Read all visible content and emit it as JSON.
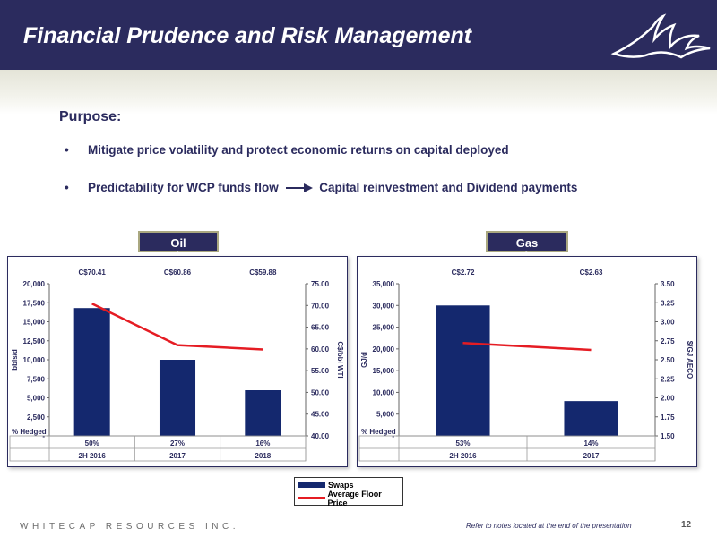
{
  "header": {
    "title": "Financial Prudence and Risk Management"
  },
  "purpose": {
    "heading": "Purpose:",
    "bullets": [
      {
        "text": "Mitigate price volatility and protect economic returns on capital deployed"
      },
      {
        "text_left": "Predictability for WCP funds flow",
        "text_right": "Capital reinvestment and Dividend payments"
      }
    ]
  },
  "legend": {
    "swaps": "Swaps",
    "floor": "Average Floor Price"
  },
  "footer": {
    "company": "WHITECAP RESOURCES INC.",
    "note": "Refer to notes located at the end of the presentation",
    "page": "12"
  },
  "colors": {
    "bar": "#14286e",
    "line": "#e51c23",
    "header": "#2b2b5e"
  },
  "chart_data": [
    {
      "type": "bar",
      "title": "Oil Hedges",
      "categories": [
        "2H 2016",
        "2017",
        "2018"
      ],
      "ylabel": "bbls/d",
      "y2label": "C$/bbl WTI",
      "ylim": [
        0,
        20000
      ],
      "y2lim": [
        40,
        75
      ],
      "yticks": [
        "-",
        "2,500",
        "5,000",
        "7,500",
        "10,000",
        "12,500",
        "15,000",
        "17,500",
        "20,000"
      ],
      "y2ticks": [
        "40.00",
        "45.00",
        "50.00",
        "55.00",
        "60.00",
        "65.00",
        "70.00",
        "75.00"
      ],
      "price_labels": [
        "C$70.41",
        "C$60.86",
        "C$59.88"
      ],
      "hedged_label": "% Hedged",
      "hedged": [
        "50%",
        "27%",
        "16%"
      ],
      "series": [
        {
          "name": "Swaps",
          "values": [
            16800,
            10000,
            6000
          ]
        },
        {
          "name": "Average Floor Price",
          "values": [
            70.41,
            60.86,
            59.88
          ]
        }
      ]
    },
    {
      "type": "bar",
      "title": "Gas Hedges",
      "categories": [
        "2H 2016",
        "2017"
      ],
      "ylabel": "GJ/d",
      "y2label": "$/GJ AECO",
      "ylim": [
        0,
        35000
      ],
      "y2lim": [
        1.5,
        3.5
      ],
      "yticks": [
        "-",
        "5,000",
        "10,000",
        "15,000",
        "20,000",
        "25,000",
        "30,000",
        "35,000"
      ],
      "y2ticks": [
        "1.50",
        "1.75",
        "2.00",
        "2.25",
        "2.50",
        "2.75",
        "3.00",
        "3.25",
        "3.50"
      ],
      "price_labels": [
        "C$2.72",
        "C$2.63"
      ],
      "hedged_label": "% Hedged",
      "hedged": [
        "53%",
        "14%"
      ],
      "series": [
        {
          "name": "Swaps",
          "values": [
            30000,
            8000
          ]
        },
        {
          "name": "Average Floor Price",
          "values": [
            2.72,
            2.63
          ]
        }
      ]
    }
  ]
}
